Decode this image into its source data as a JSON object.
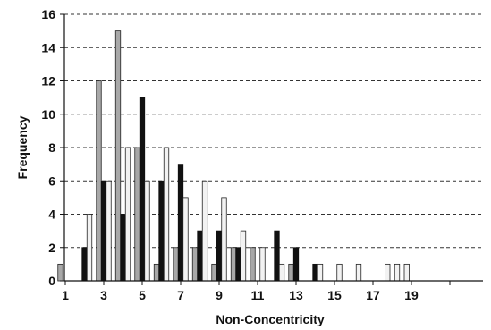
{
  "chart_data": {
    "type": "bar",
    "title": "",
    "xlabel": "Non-Concentricity",
    "ylabel": "Frequency",
    "xlim": [
      1,
      21
    ],
    "ylim": [
      0,
      16
    ],
    "x_ticks": [
      1,
      3,
      5,
      7,
      9,
      11,
      13,
      15,
      17,
      19
    ],
    "y_ticks": [
      0,
      2,
      4,
      6,
      8,
      10,
      12,
      14,
      16
    ],
    "grid": "horizontal dashed",
    "legend": "none",
    "bin_centers": [
      1,
      2,
      2.5,
      3,
      3.5,
      4,
      4.5,
      5,
      5.5,
      6,
      6.5,
      7,
      7.5,
      8,
      8.5,
      9,
      9.5,
      10,
      10.5,
      11,
      11.5,
      12,
      12.5,
      13,
      13.5,
      14,
      14.5,
      15,
      16,
      17.5,
      18,
      18.5
    ],
    "series": [
      {
        "color": "#a8a8a8",
        "edge": "#222222",
        "values": [
          1,
          0,
          0,
          12,
          0,
          15,
          0,
          8,
          0,
          1,
          0,
          2,
          0,
          2,
          0,
          1,
          0,
          2,
          0,
          2,
          0,
          0,
          0,
          1,
          0,
          0,
          0,
          0,
          0,
          0,
          0,
          0
        ]
      },
      {
        "color": "#111111",
        "edge": "#111111",
        "values": [
          0,
          2,
          0,
          6,
          0,
          4,
          0,
          11,
          0,
          6,
          0,
          7,
          0,
          3,
          0,
          3,
          0,
          2,
          0,
          0,
          0,
          3,
          0,
          2,
          0,
          1,
          0,
          0,
          0,
          0,
          0,
          0
        ]
      },
      {
        "color": "#f2f2f2",
        "edge": "#222222",
        "values": [
          0,
          4,
          3,
          6,
          0,
          8,
          0,
          6,
          0,
          8,
          0,
          5,
          0,
          6,
          0,
          5,
          0,
          3,
          0,
          2,
          0,
          1,
          0,
          0,
          0,
          1,
          0,
          1,
          1,
          1,
          1,
          1
        ]
      }
    ]
  }
}
